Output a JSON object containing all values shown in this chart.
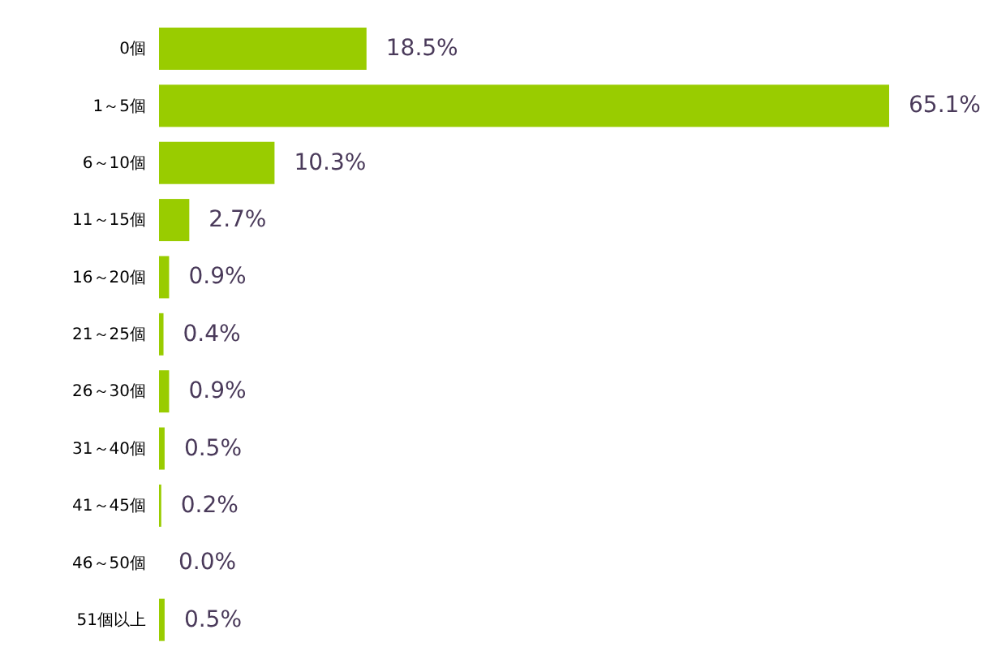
{
  "chart_data": {
    "type": "bar",
    "orientation": "horizontal",
    "categories": [
      "0個",
      "1～5個",
      "6～10個",
      "11～15個",
      "16～20個",
      "21～25個",
      "26～30個",
      "31～40個",
      "41～45個",
      "46～50個",
      "51個以上"
    ],
    "values": [
      18.5,
      65.1,
      10.3,
      2.7,
      0.9,
      0.4,
      0.9,
      0.5,
      0.2,
      0.0,
      0.5
    ],
    "value_labels": [
      "18.5%",
      "65.1%",
      "10.3%",
      "2.7%",
      "0.9%",
      "0.4%",
      "0.9%",
      "0.5%",
      "0.2%",
      "0.0%",
      "0.5%"
    ],
    "color": "#99cc00"
  }
}
